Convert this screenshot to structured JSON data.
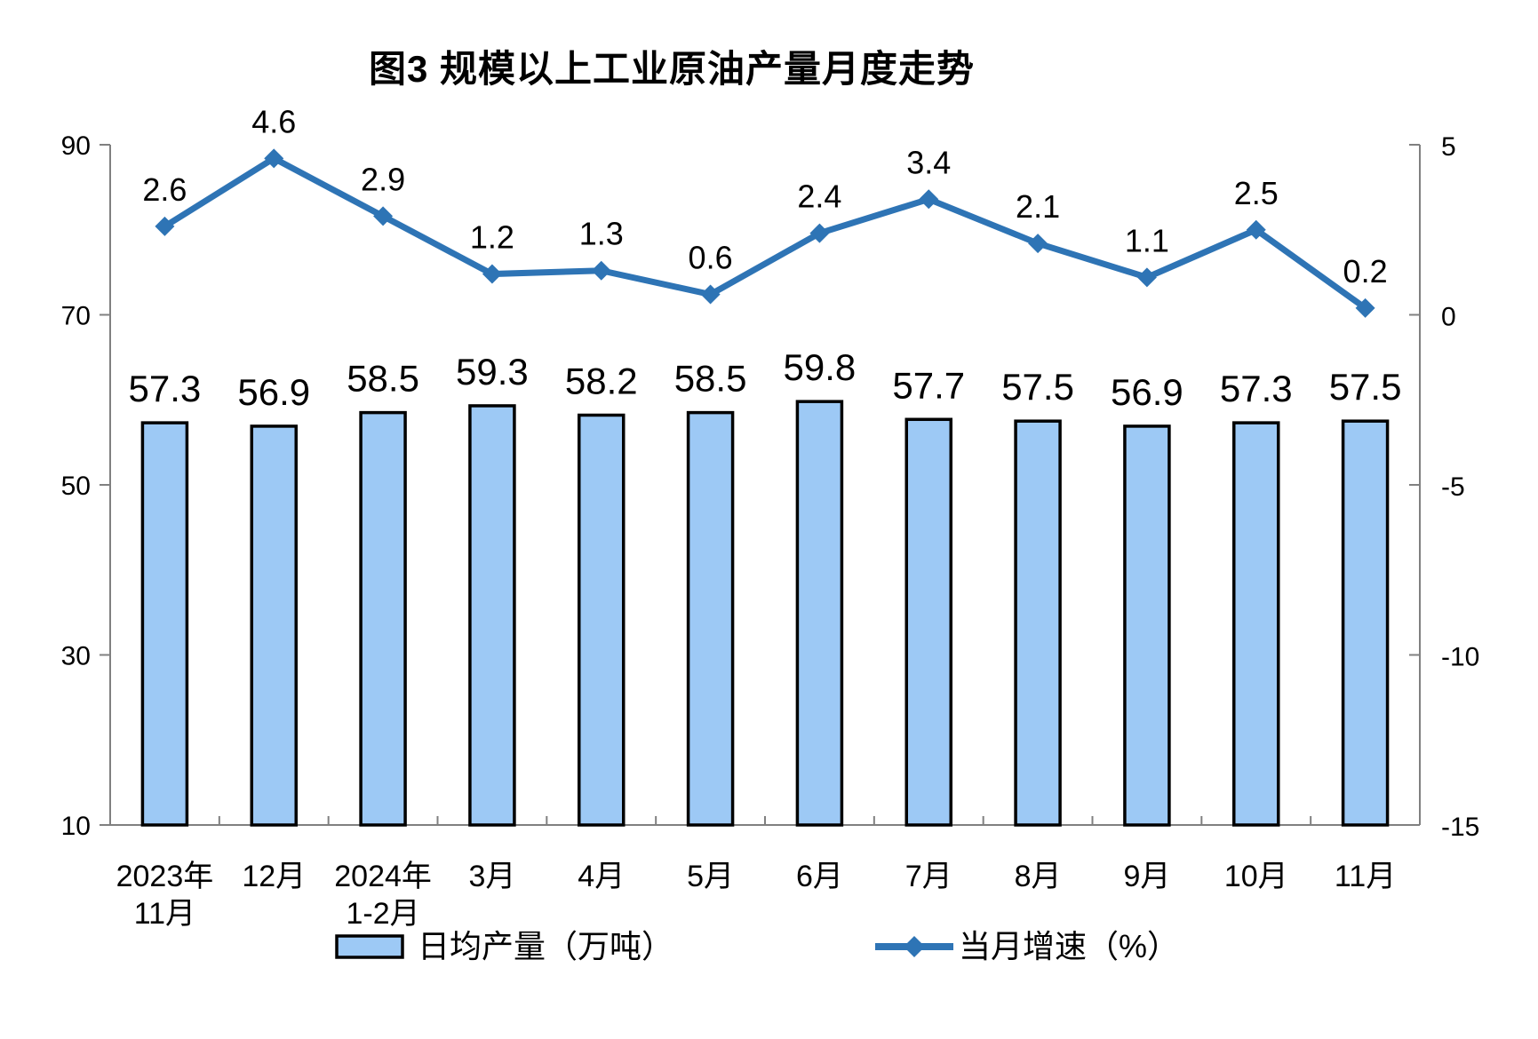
{
  "title": "图3 规模以上工业原油产量月度走势",
  "colors": {
    "bar_fill": "#9DC9F5",
    "bar_border": "#000000",
    "line": "#2E74B5",
    "axis": "#808080",
    "text": "#000000",
    "background": "#FFFFFF"
  },
  "legend": {
    "bar_label": "日均产量（万吨）",
    "line_label": "当月增速（%）"
  },
  "chart_data": {
    "type": "bar+line combo",
    "title": "图3 规模以上工业原油产量月度走势",
    "categories": [
      "2023年\n11月",
      "12月",
      "2024年\n1-2月",
      "3月",
      "4月",
      "5月",
      "6月",
      "7月",
      "8月",
      "9月",
      "10月",
      "11月"
    ],
    "series": [
      {
        "name": "日均产量（万吨）",
        "type": "bar",
        "axis": "left",
        "values": [
          57.3,
          56.9,
          58.5,
          59.3,
          58.2,
          58.5,
          59.8,
          57.7,
          57.5,
          56.9,
          57.3,
          57.5
        ]
      },
      {
        "name": "当月增速（%）",
        "type": "line",
        "axis": "right",
        "values": [
          2.6,
          4.6,
          2.9,
          1.2,
          1.3,
          0.6,
          2.4,
          3.4,
          2.1,
          1.1,
          2.5,
          0.2
        ]
      }
    ],
    "left_axis": {
      "min": 10,
      "max": 90,
      "ticks": [
        90,
        70,
        50,
        30,
        10
      ]
    },
    "right_axis": {
      "min": -15,
      "max": 5,
      "ticks": [
        5,
        0,
        -5,
        -10,
        -15
      ]
    },
    "grid": "off",
    "legend_position": "bottom",
    "data_labels": "on"
  }
}
